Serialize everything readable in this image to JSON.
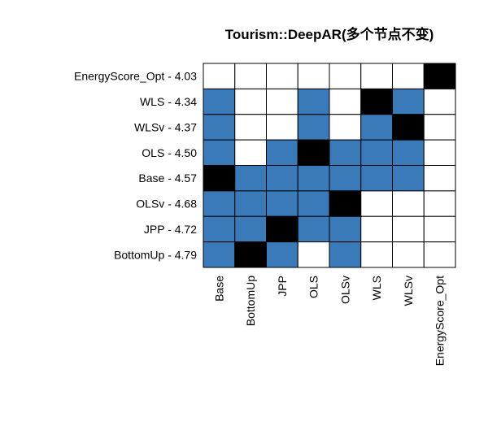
{
  "chart_data": {
    "type": "heatmap",
    "title": "Tourism::DeepAR(多个节点不变)",
    "columns": [
      "Base",
      "BottomUp",
      "JPP",
      "OLS",
      "OLSv",
      "WLS",
      "WLSv",
      "EnergyScore_Opt"
    ],
    "rows": [
      "EnergyScore_Opt - 4.03",
      "WLS - 4.34",
      "WLSv - 4.37",
      "OLS - 4.50",
      "Base - 4.57",
      "OLSv - 4.68",
      "JPP - 4.72",
      "BottomUp - 4.79"
    ],
    "cell_states": [
      "not-significant",
      "significant",
      "self"
    ],
    "cells": [
      [
        0,
        0,
        0,
        0,
        0,
        0,
        0,
        2
      ],
      [
        1,
        0,
        0,
        1,
        0,
        2,
        1,
        0
      ],
      [
        1,
        0,
        0,
        1,
        0,
        1,
        2,
        0
      ],
      [
        1,
        0,
        1,
        2,
        1,
        1,
        1,
        0
      ],
      [
        2,
        1,
        1,
        1,
        1,
        1,
        1,
        0
      ],
      [
        1,
        1,
        1,
        1,
        2,
        0,
        0,
        0
      ],
      [
        1,
        1,
        2,
        1,
        1,
        0,
        0,
        0
      ],
      [
        1,
        2,
        1,
        0,
        1,
        0,
        0,
        0
      ]
    ],
    "colors": {
      "not-significant": "#ffffff",
      "significant": "#3a7ab8",
      "self": "#000000",
      "border": "#000000"
    }
  }
}
